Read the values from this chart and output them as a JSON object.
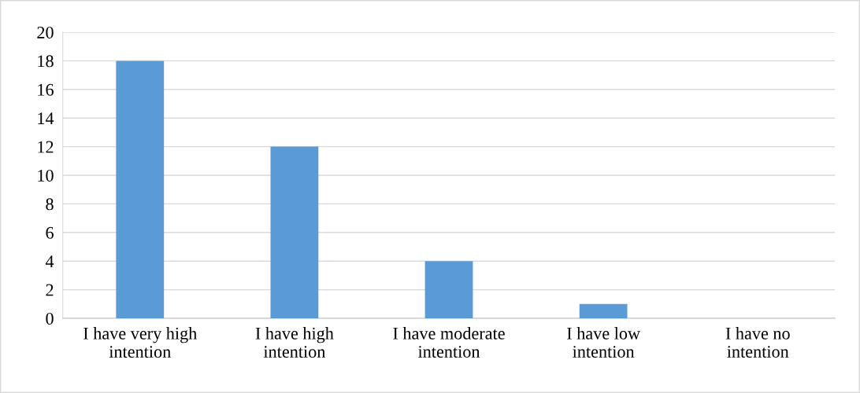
{
  "chart_data": {
    "type": "bar",
    "categories": [
      "I have very high\nintention",
      "I have high\nintention",
      "I have moderate\nintention",
      "I have low\nintention",
      "I have no\nintention"
    ],
    "values": [
      18,
      12,
      4,
      1,
      0
    ],
    "color": "#5b9bd5",
    "ylim": [
      0,
      20
    ],
    "yticks": [
      0,
      2,
      4,
      6,
      8,
      10,
      12,
      14,
      16,
      18,
      20
    ],
    "grid": "y",
    "legend": false
  }
}
